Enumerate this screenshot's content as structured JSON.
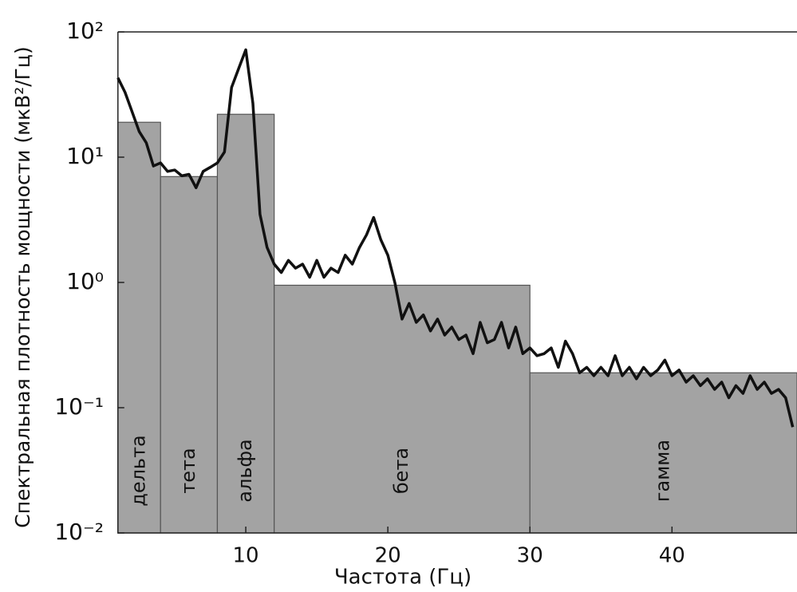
{
  "chart_data": {
    "type": "line",
    "x_label": "Частота (Гц)",
    "y_label": "Спектральная плотность мощности  (мкВ²/Гц)",
    "log_y": true,
    "xlim": [
      1,
      48.8
    ],
    "xticks": [
      10,
      20,
      30,
      40
    ],
    "ylim": [
      0.01,
      100
    ],
    "yticks": [
      {
        "value": 0.01,
        "label": "10⁻²"
      },
      {
        "value": 0.1,
        "label": "10⁻¹"
      },
      {
        "value": 1,
        "label": "10⁰"
      },
      {
        "value": 10,
        "label": "10¹"
      },
      {
        "value": 100,
        "label": "10²"
      }
    ],
    "bands": [
      {
        "name": "дельта",
        "range": [
          1,
          4
        ],
        "value": 19
      },
      {
        "name": "тета",
        "range": [
          4,
          8
        ],
        "value": 7
      },
      {
        "name": "альфа",
        "range": [
          8,
          12
        ],
        "value": 22
      },
      {
        "name": "бета",
        "range": [
          12,
          30
        ],
        "value": 0.95
      },
      {
        "name": "гамма",
        "range": [
          30,
          48.8
        ],
        "value": 0.19
      }
    ],
    "band_color": "#a3a3a3",
    "series": [
      {
        "color": "#111111",
        "x": [
          1,
          1.5,
          2,
          2.5,
          3,
          3.5,
          4,
          4.5,
          5,
          5.5,
          6,
          6.5,
          7,
          7.5,
          8,
          8.5,
          9,
          9.5,
          10,
          10.5,
          11,
          11.5,
          12,
          12.5,
          13,
          13.5,
          14,
          14.5,
          15,
          15.5,
          16,
          16.5,
          17,
          17.5,
          18,
          18.5,
          19,
          19.5,
          20,
          20.5,
          21,
          21.5,
          22,
          22.5,
          23,
          23.5,
          24,
          24.5,
          25,
          25.5,
          26,
          26.5,
          27,
          27.5,
          28,
          28.5,
          29,
          29.5,
          30,
          30.5,
          31,
          31.5,
          32,
          32.5,
          33,
          33.5,
          34,
          34.5,
          35,
          35.5,
          36,
          36.5,
          37,
          37.5,
          38,
          38.5,
          39,
          39.5,
          40,
          40.5,
          41,
          41.5,
          42,
          42.5,
          43,
          43.5,
          44,
          44.5,
          45,
          45.5,
          46,
          46.5,
          47,
          47.5,
          48,
          48.5
        ],
        "values": [
          43,
          33,
          23,
          16,
          13,
          8.5,
          9,
          7.7,
          7.9,
          7.1,
          7.3,
          5.7,
          7.7,
          8.3,
          9,
          11,
          36,
          51,
          72,
          27,
          3.5,
          1.9,
          1.4,
          1.2,
          1.5,
          1.3,
          1.4,
          1.1,
          1.5,
          1.1,
          1.3,
          1.2,
          1.65,
          1.4,
          1.9,
          2.4,
          3.3,
          2.2,
          1.65,
          0.99,
          0.51,
          0.68,
          0.48,
          0.55,
          0.41,
          0.51,
          0.38,
          0.44,
          0.35,
          0.38,
          0.27,
          0.48,
          0.33,
          0.35,
          0.48,
          0.3,
          0.44,
          0.27,
          0.3,
          0.26,
          0.27,
          0.3,
          0.21,
          0.34,
          0.27,
          0.19,
          0.21,
          0.18,
          0.21,
          0.18,
          0.26,
          0.18,
          0.21,
          0.17,
          0.21,
          0.18,
          0.2,
          0.24,
          0.18,
          0.2,
          0.16,
          0.18,
          0.15,
          0.17,
          0.14,
          0.16,
          0.12,
          0.15,
          0.13,
          0.18,
          0.14,
          0.16,
          0.13,
          0.14,
          0.12,
          0.07
        ]
      }
    ]
  }
}
